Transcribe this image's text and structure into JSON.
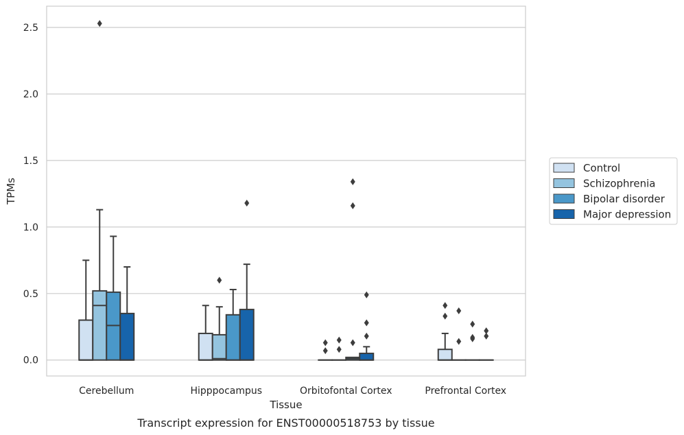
{
  "chart_data": {
    "type": "box",
    "title": "",
    "caption": "Transcript expression for ENST00000518753 by tissue",
    "xlabel": "Tissue",
    "ylabel": "TPMs",
    "ylim": [
      -0.12,
      2.66
    ],
    "yticks": [
      0.0,
      0.5,
      1.0,
      1.5,
      2.0,
      2.5
    ],
    "ytick_labels": [
      "0.0",
      "0.5",
      "1.0",
      "1.5",
      "2.0",
      "2.5"
    ],
    "grid": "horizontal",
    "legend_position": "right",
    "categories": [
      "Cerebellum",
      "Hipppocampus",
      "Orbitofontal Cortex",
      "Prefrontal Cortex"
    ],
    "series": [
      {
        "name": "Control",
        "color": "#d0e1f2",
        "boxes": [
          {
            "q1": 0.0,
            "median": 0.0,
            "q3": 0.3,
            "whisker_low": 0.0,
            "whisker_high": 0.75,
            "outliers": []
          },
          {
            "q1": 0.0,
            "median": 0.0,
            "q3": 0.2,
            "whisker_low": 0.0,
            "whisker_high": 0.41,
            "outliers": []
          },
          {
            "q1": 0.0,
            "median": 0.0,
            "q3": 0.0,
            "whisker_low": 0.0,
            "whisker_high": 0.0,
            "outliers": [
              0.07,
              0.13
            ]
          },
          {
            "q1": 0.0,
            "median": 0.0,
            "q3": 0.08,
            "whisker_low": 0.0,
            "whisker_high": 0.2,
            "outliers": [
              0.33,
              0.41
            ]
          }
        ]
      },
      {
        "name": "Schizophrenia",
        "color": "#94c4df",
        "boxes": [
          {
            "q1": 0.0,
            "median": 0.41,
            "q3": 0.52,
            "whisker_low": 0.0,
            "whisker_high": 1.13,
            "outliers": [
              2.53
            ]
          },
          {
            "q1": 0.0,
            "median": 0.01,
            "q3": 0.19,
            "whisker_low": 0.0,
            "whisker_high": 0.4,
            "outliers": [
              0.6
            ]
          },
          {
            "q1": 0.0,
            "median": 0.0,
            "q3": 0.0,
            "whisker_low": 0.0,
            "whisker_high": 0.0,
            "outliers": [
              0.08,
              0.15
            ]
          },
          {
            "q1": 0.0,
            "median": 0.0,
            "q3": 0.0,
            "whisker_low": 0.0,
            "whisker_high": 0.0,
            "outliers": [
              0.14,
              0.37
            ]
          }
        ]
      },
      {
        "name": "Bipolar disorder",
        "color": "#4a98c9",
        "boxes": [
          {
            "q1": 0.0,
            "median": 0.26,
            "q3": 0.51,
            "whisker_low": 0.0,
            "whisker_high": 0.93,
            "outliers": []
          },
          {
            "q1": 0.0,
            "median": 0.0,
            "q3": 0.34,
            "whisker_low": 0.0,
            "whisker_high": 0.53,
            "outliers": []
          },
          {
            "q1": 0.0,
            "median": 0.01,
            "q3": 0.02,
            "whisker_low": 0.0,
            "whisker_high": 0.02,
            "outliers": [
              0.13,
              1.16,
              1.34
            ]
          },
          {
            "q1": 0.0,
            "median": 0.0,
            "q3": 0.0,
            "whisker_low": 0.0,
            "whisker_high": 0.0,
            "outliers": [
              0.16,
              0.17,
              0.27
            ]
          }
        ]
      },
      {
        "name": "Major depression",
        "color": "#1764ab",
        "boxes": [
          {
            "q1": 0.0,
            "median": 0.0,
            "q3": 0.35,
            "whisker_low": 0.0,
            "whisker_high": 0.7,
            "outliers": []
          },
          {
            "q1": 0.0,
            "median": 0.0,
            "q3": 0.38,
            "whisker_low": 0.0,
            "whisker_high": 0.72,
            "outliers": [
              1.18
            ]
          },
          {
            "q1": 0.0,
            "median": 0.0,
            "q3": 0.05,
            "whisker_low": 0.0,
            "whisker_high": 0.1,
            "outliers": [
              0.18,
              0.28,
              0.49
            ]
          },
          {
            "q1": 0.0,
            "median": 0.0,
            "q3": 0.0,
            "whisker_low": 0.0,
            "whisker_high": 0.0,
            "outliers": [
              0.18,
              0.22
            ]
          }
        ]
      }
    ]
  }
}
